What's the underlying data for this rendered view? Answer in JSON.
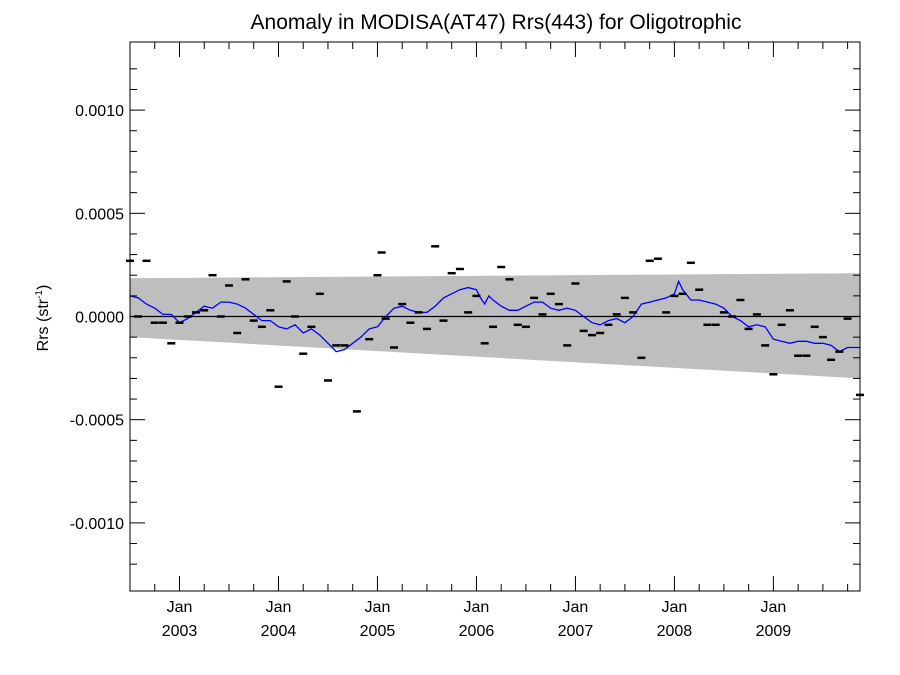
{
  "chart_data": {
    "type": "line",
    "title": "Anomaly in MODISA(AT47) Rrs(443) for Oligotrophic",
    "ylabel": "Rrs (str",
    "ylabel_sup": "-1",
    "ylabel_close": ")",
    "xlim": [
      2002.5,
      2009.875
    ],
    "ylim": [
      -0.00133,
      0.00133
    ],
    "yticks": [
      {
        "value": 0.001,
        "label": "0.0010"
      },
      {
        "value": 0.0005,
        "label": "0.0005"
      },
      {
        "value": 0.0,
        "label": "0.0000"
      },
      {
        "value": -0.0005,
        "label": "-0.0005"
      },
      {
        "value": -0.001,
        "label": "-0.0010"
      }
    ],
    "xticks": [
      {
        "value": 2003.0,
        "month": "Jan",
        "year": "2003"
      },
      {
        "value": 2004.0,
        "month": "Jan",
        "year": "2004"
      },
      {
        "value": 2005.0,
        "month": "Jan",
        "year": "2005"
      },
      {
        "value": 2006.0,
        "month": "Jan",
        "year": "2006"
      },
      {
        "value": 2007.0,
        "month": "Jan",
        "year": "2007"
      },
      {
        "value": 2008.0,
        "month": "Jan",
        "year": "2008"
      },
      {
        "value": 2009.0,
        "month": "Jan",
        "year": "2009"
      }
    ],
    "zero_line": 0.0,
    "band": {
      "upper": [
        [
          2002.5,
          0.000185
        ],
        [
          2009.875,
          0.00021
        ]
      ],
      "lower": [
        [
          2002.5,
          -0.0001
        ],
        [
          2009.875,
          -0.0003
        ]
      ],
      "color": "#bebebe"
    },
    "series": [
      {
        "color": "#0000ff",
        "points": [
          [
            2002.5,
            0.0001
          ],
          [
            2002.583,
            9e-05
          ],
          [
            2002.667,
            6e-05
          ],
          [
            2002.75,
            4e-05
          ],
          [
            2002.833,
            1e-05
          ],
          [
            2002.917,
            1e-05
          ],
          [
            2003.0,
            -3e-05
          ],
          [
            2003.083,
            -1e-05
          ],
          [
            2003.167,
            2e-05
          ],
          [
            2003.25,
            5e-05
          ],
          [
            2003.333,
            4e-05
          ],
          [
            2003.417,
            7e-05
          ],
          [
            2003.5,
            7e-05
          ],
          [
            2003.583,
            6e-05
          ],
          [
            2003.667,
            4e-05
          ],
          [
            2003.75,
            1e-05
          ],
          [
            2003.833,
            -2e-05
          ],
          [
            2003.917,
            -2e-05
          ],
          [
            2004.0,
            -5e-05
          ],
          [
            2004.083,
            -6e-05
          ],
          [
            2004.167,
            -4e-05
          ],
          [
            2004.25,
            -8e-05
          ],
          [
            2004.333,
            -6e-05
          ],
          [
            2004.417,
            -9e-05
          ],
          [
            2004.5,
            -0.00013
          ],
          [
            2004.583,
            -0.00017
          ],
          [
            2004.667,
            -0.00016
          ],
          [
            2004.75,
            -0.00013
          ],
          [
            2004.833,
            -0.0001
          ],
          [
            2004.917,
            -6e-05
          ],
          [
            2005.0,
            -5e-05
          ],
          [
            2005.083,
            0.0
          ],
          [
            2005.167,
            4e-05
          ],
          [
            2005.25,
            5e-05
          ],
          [
            2005.333,
            3e-05
          ],
          [
            2005.417,
            2e-05
          ],
          [
            2005.5,
            2e-05
          ],
          [
            2005.583,
            5e-05
          ],
          [
            2005.667,
            9e-05
          ],
          [
            2005.75,
            0.00011
          ],
          [
            2005.833,
            0.00013
          ],
          [
            2005.917,
            0.00014
          ],
          [
            2006.0,
            0.00013
          ],
          [
            2006.042,
            9e-05
          ],
          [
            2006.083,
            6e-05
          ],
          [
            2006.125,
            0.0001
          ],
          [
            2006.167,
            8e-05
          ],
          [
            2006.25,
            5e-05
          ],
          [
            2006.333,
            3e-05
          ],
          [
            2006.417,
            3e-05
          ],
          [
            2006.5,
            5e-05
          ],
          [
            2006.583,
            7e-05
          ],
          [
            2006.667,
            7e-05
          ],
          [
            2006.75,
            4e-05
          ],
          [
            2006.833,
            3e-05
          ],
          [
            2006.917,
            4e-05
          ],
          [
            2007.0,
            3e-05
          ],
          [
            2007.083,
            0.0
          ],
          [
            2007.167,
            -3e-05
          ],
          [
            2007.25,
            -4e-05
          ],
          [
            2007.333,
            -2e-05
          ],
          [
            2007.417,
            -1e-05
          ],
          [
            2007.5,
            -3e-05
          ],
          [
            2007.583,
            0.0
          ],
          [
            2007.667,
            6e-05
          ],
          [
            2007.75,
            7e-05
          ],
          [
            2007.833,
            8e-05
          ],
          [
            2007.917,
            9e-05
          ],
          [
            2008.0,
            0.00011
          ],
          [
            2008.042,
            0.00017
          ],
          [
            2008.083,
            0.00013
          ],
          [
            2008.167,
            8e-05
          ],
          [
            2008.25,
            8e-05
          ],
          [
            2008.333,
            7e-05
          ],
          [
            2008.417,
            6e-05
          ],
          [
            2008.5,
            4e-05
          ],
          [
            2008.583,
            0.0
          ],
          [
            2008.667,
            -2e-05
          ],
          [
            2008.75,
            -5e-05
          ],
          [
            2008.833,
            -4e-05
          ],
          [
            2008.917,
            -5e-05
          ],
          [
            2009.0,
            -0.00011
          ],
          [
            2009.083,
            -0.00012
          ],
          [
            2009.167,
            -0.00013
          ],
          [
            2009.25,
            -0.00012
          ],
          [
            2009.333,
            -0.00012
          ],
          [
            2009.417,
            -0.00013
          ],
          [
            2009.5,
            -0.00013
          ],
          [
            2009.583,
            -0.00014
          ],
          [
            2009.667,
            -0.00017
          ],
          [
            2009.75,
            -0.00015
          ],
          [
            2009.875,
            -0.00015
          ]
        ]
      }
    ],
    "markers": {
      "color": "#000000",
      "points": [
        [
          2002.5,
          0.00027
        ],
        [
          2002.583,
          0.0
        ],
        [
          2002.667,
          0.00027
        ],
        [
          2002.75,
          -3e-05
        ],
        [
          2002.833,
          -3e-05
        ],
        [
          2002.917,
          -0.00013
        ],
        [
          2003.0,
          -3e-05
        ],
        [
          2003.083,
          0.0
        ],
        [
          2003.167,
          2e-05
        ],
        [
          2003.25,
          3e-05
        ],
        [
          2003.333,
          0.0002
        ],
        [
          2003.417,
          0.0
        ],
        [
          2003.5,
          0.00015
        ],
        [
          2003.583,
          -8e-05
        ],
        [
          2003.667,
          0.00018
        ],
        [
          2003.75,
          -2e-05
        ],
        [
          2003.833,
          -5e-05
        ],
        [
          2003.917,
          3e-05
        ],
        [
          2004.0,
          -0.00034
        ],
        [
          2004.083,
          0.00017
        ],
        [
          2004.167,
          0.0
        ],
        [
          2004.25,
          -0.00018
        ],
        [
          2004.333,
          -5e-05
        ],
        [
          2004.417,
          0.00011
        ],
        [
          2004.5,
          -0.00031
        ],
        [
          2004.583,
          -0.00014
        ],
        [
          2004.667,
          -0.00014
        ],
        [
          2004.792,
          -0.00046
        ],
        [
          2004.917,
          -0.00011
        ],
        [
          2005.0,
          0.0002
        ],
        [
          2005.042,
          0.00031
        ],
        [
          2005.083,
          -1e-05
        ],
        [
          2005.167,
          -0.00015
        ],
        [
          2005.25,
          6e-05
        ],
        [
          2005.333,
          -3e-05
        ],
        [
          2005.417,
          2e-05
        ],
        [
          2005.5,
          -6e-05
        ],
        [
          2005.583,
          0.00034
        ],
        [
          2005.667,
          -2e-05
        ],
        [
          2005.75,
          0.00021
        ],
        [
          2005.833,
          0.00023
        ],
        [
          2005.917,
          2e-05
        ],
        [
          2006.0,
          0.0001
        ],
        [
          2006.083,
          -0.00013
        ],
        [
          2006.167,
          -5e-05
        ],
        [
          2006.25,
          0.00024
        ],
        [
          2006.333,
          0.00018
        ],
        [
          2006.417,
          -4e-05
        ],
        [
          2006.5,
          -5e-05
        ],
        [
          2006.583,
          9e-05
        ],
        [
          2006.667,
          1e-05
        ],
        [
          2006.75,
          0.00011
        ],
        [
          2006.833,
          6e-05
        ],
        [
          2006.917,
          -0.00014
        ],
        [
          2007.0,
          0.00016
        ],
        [
          2007.083,
          -7e-05
        ],
        [
          2007.167,
          -9e-05
        ],
        [
          2007.25,
          -8e-05
        ],
        [
          2007.333,
          -4e-05
        ],
        [
          2007.417,
          1e-05
        ],
        [
          2007.5,
          9e-05
        ],
        [
          2007.583,
          2e-05
        ],
        [
          2007.667,
          -0.0002
        ],
        [
          2007.75,
          0.00027
        ],
        [
          2007.833,
          0.00028
        ],
        [
          2007.917,
          2e-05
        ],
        [
          2008.0,
          0.0001
        ],
        [
          2008.083,
          0.00011
        ],
        [
          2008.167,
          0.00026
        ],
        [
          2008.25,
          0.00013
        ],
        [
          2008.333,
          -4e-05
        ],
        [
          2008.417,
          -4e-05
        ],
        [
          2008.5,
          2e-05
        ],
        [
          2008.583,
          0.0
        ],
        [
          2008.667,
          8e-05
        ],
        [
          2008.75,
          -6e-05
        ],
        [
          2008.833,
          1e-05
        ],
        [
          2008.917,
          -0.00014
        ],
        [
          2009.0,
          -0.00028
        ],
        [
          2009.083,
          -4e-05
        ],
        [
          2009.167,
          3e-05
        ],
        [
          2009.25,
          -0.00019
        ],
        [
          2009.333,
          -0.00019
        ],
        [
          2009.417,
          -5e-05
        ],
        [
          2009.5,
          -0.0001
        ],
        [
          2009.583,
          -0.00021
        ],
        [
          2009.667,
          -0.00017
        ],
        [
          2009.75,
          -1e-05
        ],
        [
          2009.875,
          -0.00038
        ]
      ]
    }
  }
}
